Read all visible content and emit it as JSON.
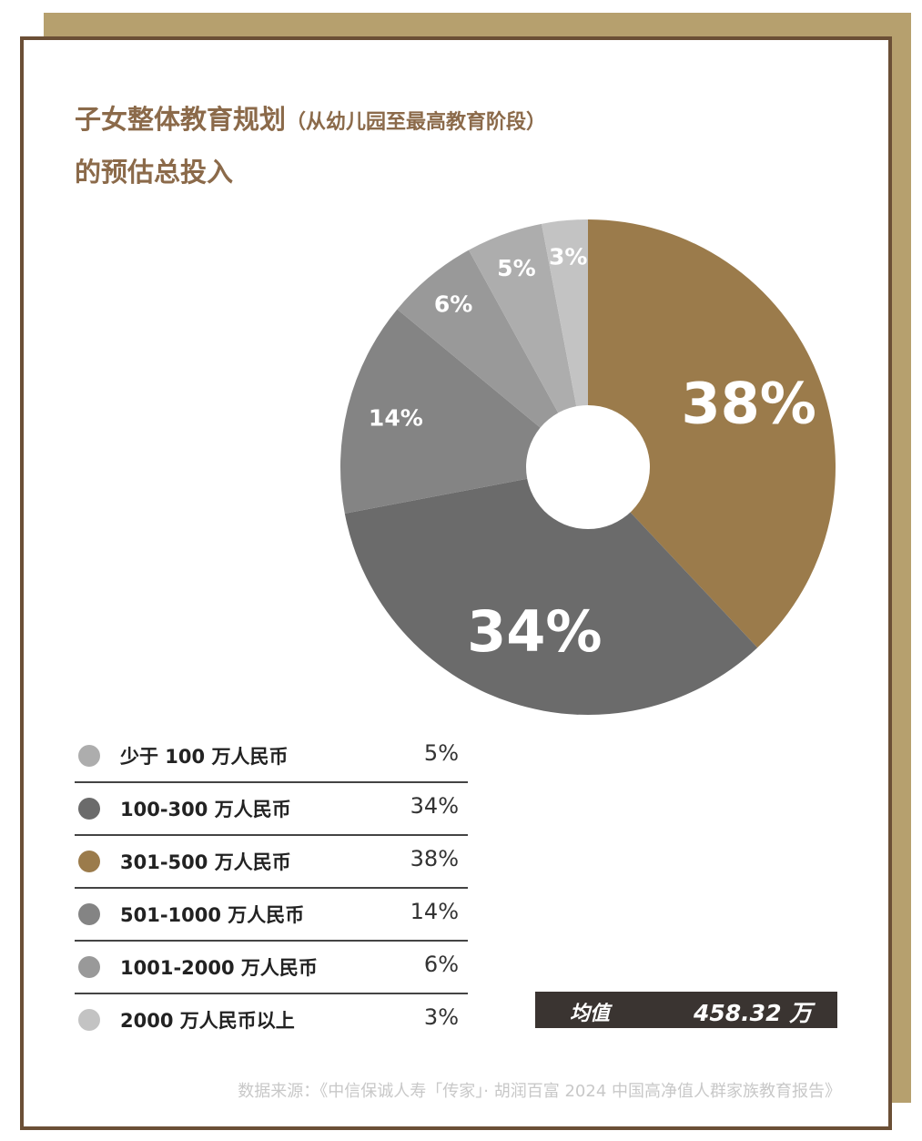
{
  "title_main": "子女整体教育规划",
  "title_sub": "（从幼儿园至最高教育阶段）",
  "title_line2": "的预估总投入",
  "mean": {
    "label": "均值",
    "value": "458.32 万"
  },
  "source": "数据来源：《中信保诚人寿「传家」· 胡润百富 2024 中国高净值人群家族教育报告》",
  "chart_data": {
    "type": "pie",
    "start": "12 o'clock, clockwise, donut",
    "series": [
      {
        "name": "301-500 万人民币",
        "value": 38,
        "label": "38%",
        "color": "#9b7b4b"
      },
      {
        "name": "100-300 万人民币",
        "value": 34,
        "label": "34%",
        "color": "#6b6b6b"
      },
      {
        "name": "501-1000 万人民币",
        "value": 14,
        "label": "14%",
        "color": "#848484"
      },
      {
        "name": "1001-2000 万人民币",
        "value": 6,
        "label": "6%",
        "color": "#999999"
      },
      {
        "name": "少于 100 万人民币",
        "value": 5,
        "label": "5%",
        "color": "#adadad"
      },
      {
        "name": "2000 万人民币以上",
        "value": 3,
        "label": "3%",
        "color": "#c3c3c3"
      }
    ]
  },
  "legend": [
    {
      "label": "少于 100 万人民币",
      "value": "5%",
      "color": "#adadad"
    },
    {
      "label": "100-300 万人民币",
      "value": "34%",
      "color": "#6b6b6b"
    },
    {
      "label": "301-500 万人民币",
      "value": "38%",
      "color": "#9b7b4b"
    },
    {
      "label": "501-1000 万人民币",
      "value": "14%",
      "color": "#848484"
    },
    {
      "label": "1001-2000 万人民币",
      "value": "6%",
      "color": "#999999"
    },
    {
      "label": "2000 万人民币以上",
      "value": "3%",
      "color": "#c3c3c3"
    }
  ]
}
